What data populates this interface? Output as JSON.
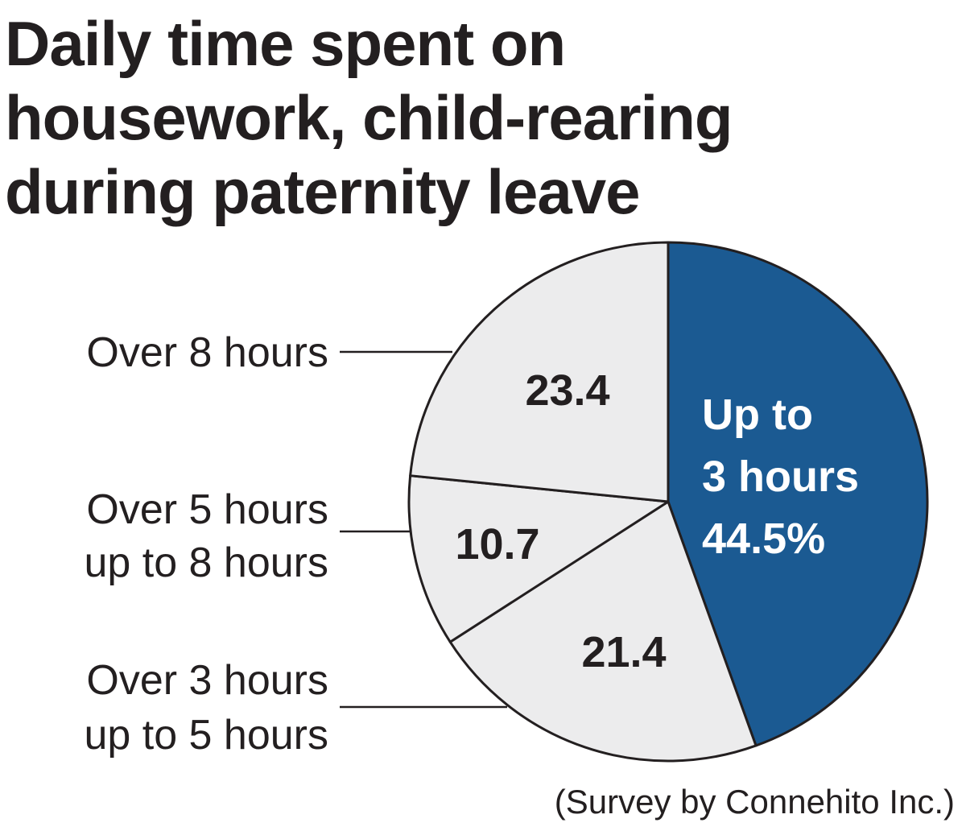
{
  "chart_data": {
    "type": "pie",
    "title_lines": [
      "Daily time spent on",
      "housework, child-rearing",
      "during paternity leave"
    ],
    "slices": [
      {
        "label": [
          "Up to",
          "3 hours"
        ],
        "value": 44.5,
        "value_text": "44.5%",
        "color": "#1b5a92",
        "highlight": true
      },
      {
        "label": [
          "Over 3 hours",
          "up to 5 hours"
        ],
        "value": 21.4,
        "value_text": "21.4",
        "color": "#ececed",
        "highlight": false
      },
      {
        "label": [
          "Over 5 hours",
          "up to 8 hours"
        ],
        "value": 10.7,
        "value_text": "10.7",
        "color": "#ececed",
        "highlight": false
      },
      {
        "label": [
          "Over 8 hours"
        ],
        "value": 23.4,
        "value_text": "23.4",
        "color": "#ececed",
        "highlight": false
      }
    ],
    "source": "(Survey by Connehito Inc.)",
    "start": "12 o'clock",
    "direction": "clockwise"
  }
}
